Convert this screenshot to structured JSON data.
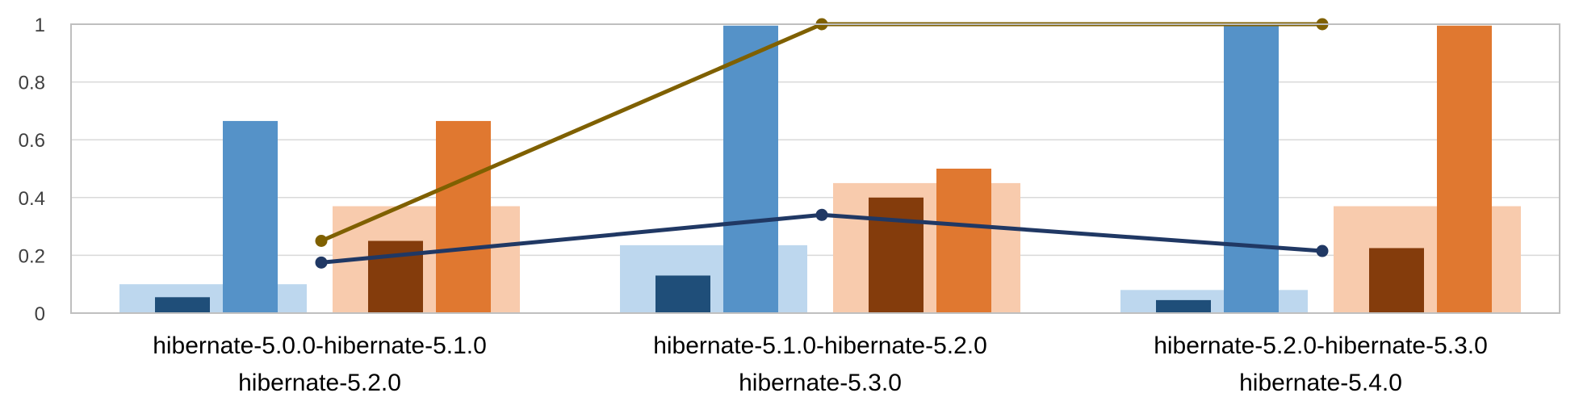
{
  "chart_data": {
    "type": "bar",
    "title": "",
    "xlabel": "",
    "ylabel": "",
    "ylim": [
      0,
      1
    ],
    "yticks": [
      0,
      0.2,
      0.4,
      0.6,
      0.8,
      1
    ],
    "ytick_labels": [
      "0",
      "0.2",
      "0.4",
      "0.6",
      "0.8",
      "1"
    ],
    "grid": "horizontal",
    "legend": "none",
    "categories": [
      {
        "line1": "hibernate-5.0.0-hibernate-5.1.0",
        "line2": "hibernate-5.2.0"
      },
      {
        "line1": "hibernate-5.1.0-hibernate-5.2.0",
        "line2": "hibernate-5.3.0"
      },
      {
        "line1": "hibernate-5.2.0-hibernate-5.3.0",
        "line2": "hibernate-5.4.0"
      }
    ],
    "bar_groups": [
      {
        "wide_bar_color": "#bdd7ee",
        "bars": [
          {
            "color": "#1f4e79",
            "values": [
              0.055,
              0.13,
              0.045
            ]
          },
          {
            "color": "#5592c8",
            "values": [
              0.665,
              0.995,
              1.0
            ]
          }
        ],
        "wide_values": [
          0.1,
          0.235,
          0.08
        ]
      },
      {
        "wide_bar_color": "#f8cbad",
        "bars": [
          {
            "color": "#843c0c",
            "values": [
              0.25,
              0.4,
              0.225
            ]
          },
          {
            "color": "#e07830",
            "values": [
              0.665,
              0.5,
              0.995
            ]
          }
        ],
        "wide_values": [
          0.37,
          0.45,
          0.37
        ]
      }
    ],
    "lines": [
      {
        "color": "#7f6000",
        "values": [
          0.25,
          1.0,
          1.0
        ]
      },
      {
        "color": "#203864",
        "values": [
          0.175,
          0.34,
          0.215
        ]
      }
    ],
    "colors": {
      "axis": "#bfbfbf",
      "grid": "#d9d9d9"
    }
  }
}
